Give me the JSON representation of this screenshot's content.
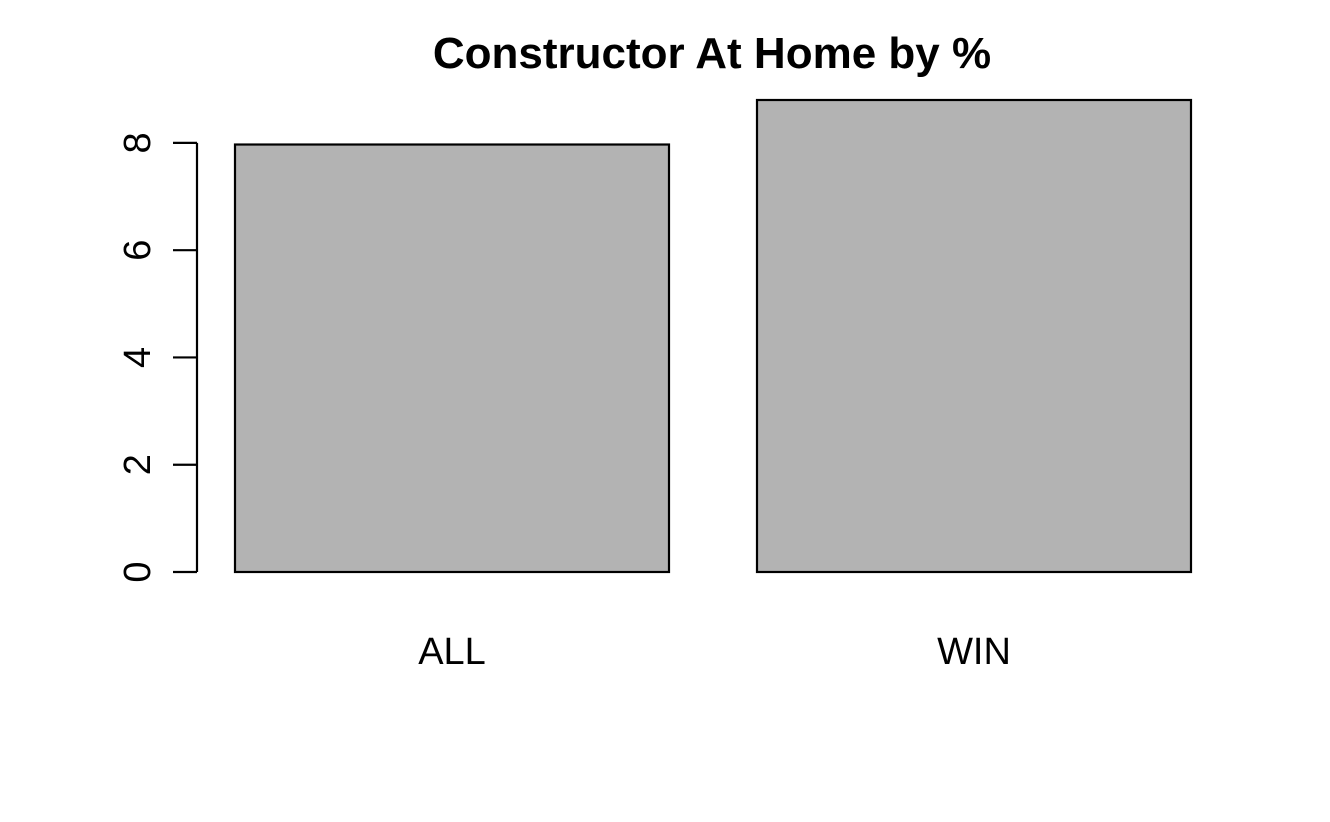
{
  "chart_data": {
    "type": "bar",
    "title": "Constructor At Home by %",
    "xlabel": "",
    "ylabel": "",
    "categories": [
      "ALL",
      "WIN"
    ],
    "values": [
      7.97,
      8.8
    ],
    "ylim": [
      0,
      8.8
    ],
    "yticks": [
      "0",
      "2",
      "4",
      "6",
      "8"
    ],
    "grid": false,
    "legend": "none",
    "bar_color": "#b3b3b3",
    "bar_border_color": "#000000"
  }
}
